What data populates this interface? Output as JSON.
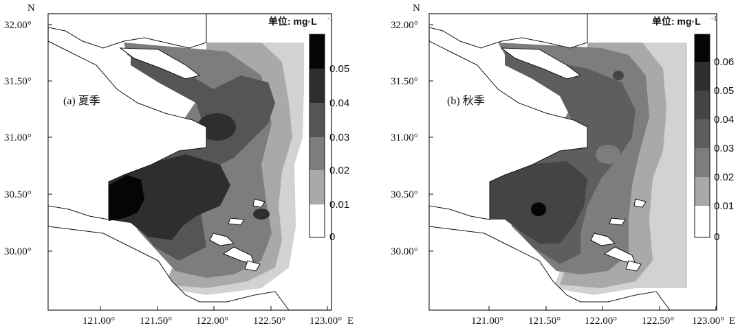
{
  "panels": [
    {
      "season_label": "(a) 夏季",
      "unit_label": "单位: mg·L",
      "unit_sup": "-1",
      "north_label": "N",
      "east_label": "E",
      "lat_ticks": [
        "32.00°",
        "31.50°",
        "31.00°",
        "30.50°",
        "30.00°"
      ],
      "lon_ticks": [
        "121.00°",
        "121.50°",
        "122.00°",
        "122.50°",
        "123.00°"
      ],
      "colorbar_ticks": [
        "0.05",
        "0.04",
        "0.03",
        "0.02",
        "0.01",
        "0"
      ],
      "colorbar_colors": [
        "#050505",
        "#2e2e2e",
        "#555555",
        "#7d7d7d",
        "#a9a9a9",
        "#d2d2d2",
        "#ffffff"
      ]
    },
    {
      "season_label": "(b) 秋季",
      "unit_label": "单位: mg·L",
      "unit_sup": "-1",
      "north_label": "N",
      "east_label": "E",
      "lat_ticks": [
        "32.00°",
        "31.50°",
        "31.00°",
        "30.50°",
        "30.00°"
      ],
      "lon_ticks": [
        "121.00°",
        "121.50°",
        "122.00°",
        "122.50°",
        "123.00°"
      ],
      "colorbar_ticks": [
        "0.06",
        "0.05",
        "0.04",
        "0.03",
        "0.02",
        "0.01",
        "0"
      ],
      "colorbar_colors": [
        "#050505",
        "#2e2e2e",
        "#444444",
        "#5e5e5e",
        "#7d7d7d",
        "#a9a9a9",
        "#d2d2d2",
        "#ffffff"
      ]
    }
  ]
}
